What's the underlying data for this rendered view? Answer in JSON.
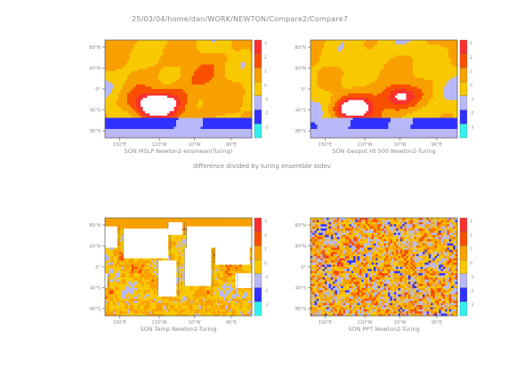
{
  "header": {
    "path": "25/03/04/home/dan/WORK/NEWTON/Compare2/Compare7"
  },
  "subtitle": "difference divided by turing ensemble stdev",
  "colors": {
    "c_m3": "#33f0f0",
    "c_m2": "#3030ff",
    "c_m1": "#b8b8f8",
    "c_0": "#f8c800",
    "c_1": "#f8a000",
    "c_2": "#f85000",
    "c_3": "#f83030",
    "c_high": "#ffffff",
    "land": "#ffffff"
  },
  "chart_data": [
    {
      "type": "heatmap",
      "title": "SON  MSLP  Newton2-ensmean(Turing)",
      "lat_ticks": [
        "80°N",
        "40°N",
        "0°",
        "40°S",
        "80°S"
      ],
      "lon_ticks": [
        "150°E",
        "110°W",
        "10°W",
        "90°E"
      ],
      "colorbar_labels": [
        "3",
        "2",
        "1",
        "0",
        "-1",
        "-2",
        "-3"
      ],
      "pattern": "mslp"
    },
    {
      "type": "heatmap",
      "title": "SON  Geopot Ht 500  Newton2-Turing",
      "lat_ticks": [
        "80°N",
        "40°N",
        "0°",
        "40°S",
        "80°S"
      ],
      "lon_ticks": [
        "150°E",
        "110°W",
        "10°W",
        "90°E"
      ],
      "colorbar_labels": [
        "3",
        "2",
        "1",
        "0",
        "-1",
        "-2",
        "-3"
      ],
      "pattern": "geopot"
    },
    {
      "type": "heatmap",
      "title": "SON  Temp  Newton2-Turing",
      "lat_ticks": [
        "80°N",
        "40°N",
        "0°",
        "40°S",
        "80°S"
      ],
      "lon_ticks": [
        "150°E",
        "110°W",
        "10°W",
        "90°E"
      ],
      "colorbar_labels": [
        "3",
        "2",
        "1",
        "0",
        "-1",
        "-2",
        "-3"
      ],
      "pattern": "temp"
    },
    {
      "type": "heatmap",
      "title": "SON  PPT  Newton2-Turing",
      "lat_ticks": [
        "80°N",
        "40°N",
        "0°",
        "40°S",
        "80°S"
      ],
      "lon_ticks": [
        "150°E",
        "110°W",
        "10°W",
        "90°E"
      ],
      "colorbar_labels": [
        "3",
        "2",
        "1",
        "0",
        "-1",
        "-2",
        "-3"
      ],
      "pattern": "ppt"
    }
  ]
}
